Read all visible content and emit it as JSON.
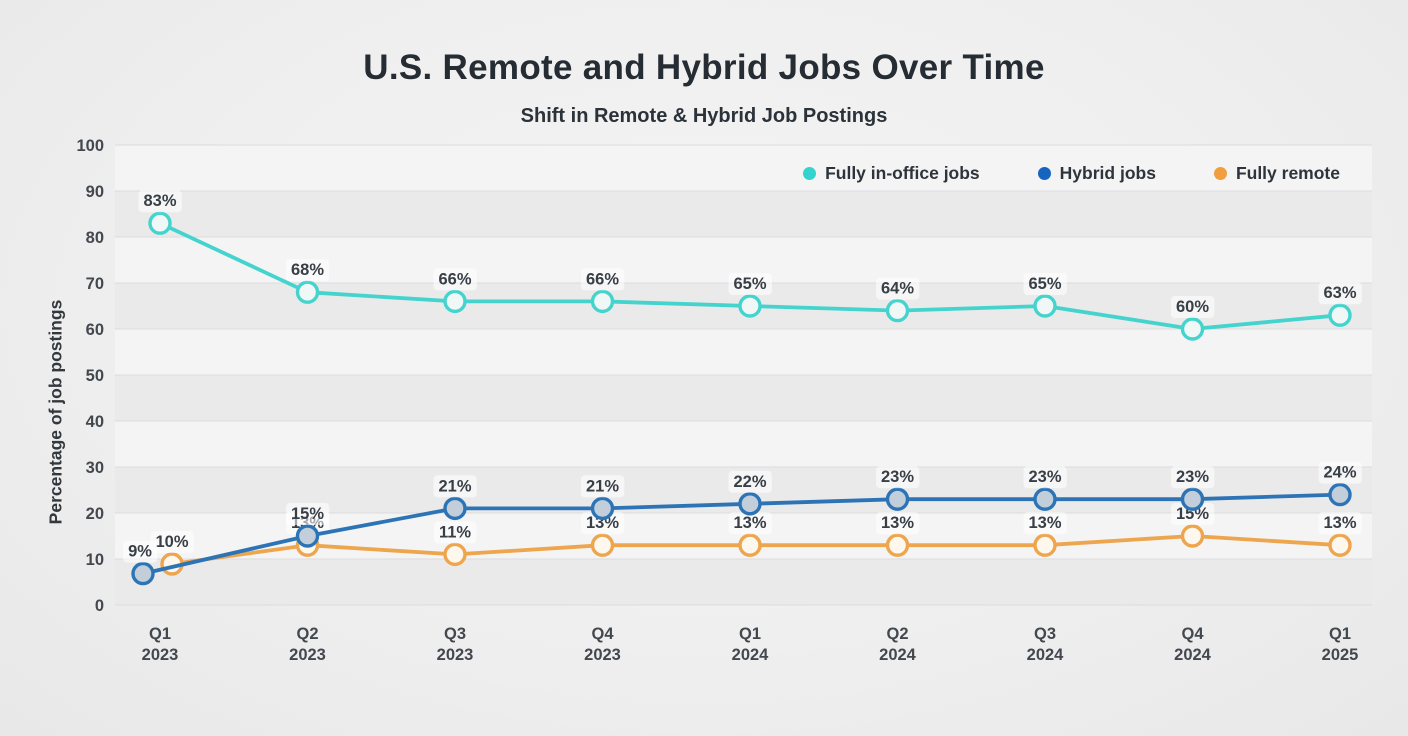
{
  "header": {
    "title": "U.S. Remote and Hybrid Jobs Over Time",
    "subtitle": "Shift in Remote & Hybrid Job Postings"
  },
  "chart_data": {
    "type": "line",
    "title": "U.S. Remote and Hybrid Jobs Over Time",
    "subtitle": "Shift in Remote & Hybrid Job Postings",
    "xlabel": "",
    "ylabel": "Percentage of job postings",
    "ylim": [
      0,
      100
    ],
    "yticks": [
      0,
      10,
      20,
      30,
      40,
      50,
      60,
      70,
      80,
      90,
      100
    ],
    "grid": "horizontal-bands",
    "legend_position": "top-right",
    "categories": [
      {
        "quarter": "Q1",
        "year": "2023"
      },
      {
        "quarter": "Q2",
        "year": "2023"
      },
      {
        "quarter": "Q3",
        "year": "2023"
      },
      {
        "quarter": "Q4",
        "year": "2023"
      },
      {
        "quarter": "Q1",
        "year": "2024"
      },
      {
        "quarter": "Q2",
        "year": "2024"
      },
      {
        "quarter": "Q3",
        "year": "2024"
      },
      {
        "quarter": "Q4",
        "year": "2024"
      },
      {
        "quarter": "Q1",
        "year": "2025"
      }
    ],
    "series": [
      {
        "name": "Fully in-office jobs",
        "color": "#45d4cd",
        "legend_color": "#35d3cd",
        "marker_fill": "#eff8f7",
        "values": [
          83,
          68,
          66,
          66,
          65,
          64,
          65,
          60,
          63
        ],
        "labels": [
          "83%",
          "68%",
          "66%",
          "66%",
          "65%",
          "64%",
          "65%",
          "60%",
          "63%"
        ]
      },
      {
        "name": "Hybrid jobs",
        "color": "#2d74b6",
        "legend_color": "#1565c0",
        "marker_fill": "#c2cfda",
        "values": [
          9,
          15,
          21,
          21,
          22,
          23,
          23,
          23,
          24
        ],
        "labels": [
          "9%",
          "15%",
          "21%",
          "21%",
          "22%",
          "23%",
          "23%",
          "23%",
          "24%"
        ]
      },
      {
        "name": "Fully remote",
        "color": "#eda54e",
        "legend_color": "#f09e3e",
        "marker_fill": "#fdf7ee",
        "values": [
          10,
          13,
          11,
          13,
          13,
          13,
          13,
          15,
          13
        ],
        "labels": [
          "10%",
          "13%",
          "11%",
          "13%",
          "13%",
          "13%",
          "13%",
          "15%",
          "13%"
        ]
      }
    ],
    "colors": {
      "band_light": "#f4f4f5",
      "band_dark": "#eaeaeb",
      "gridline": "#dcdcde",
      "tick_text": "#43484e",
      "data_label": "#393f46"
    }
  }
}
